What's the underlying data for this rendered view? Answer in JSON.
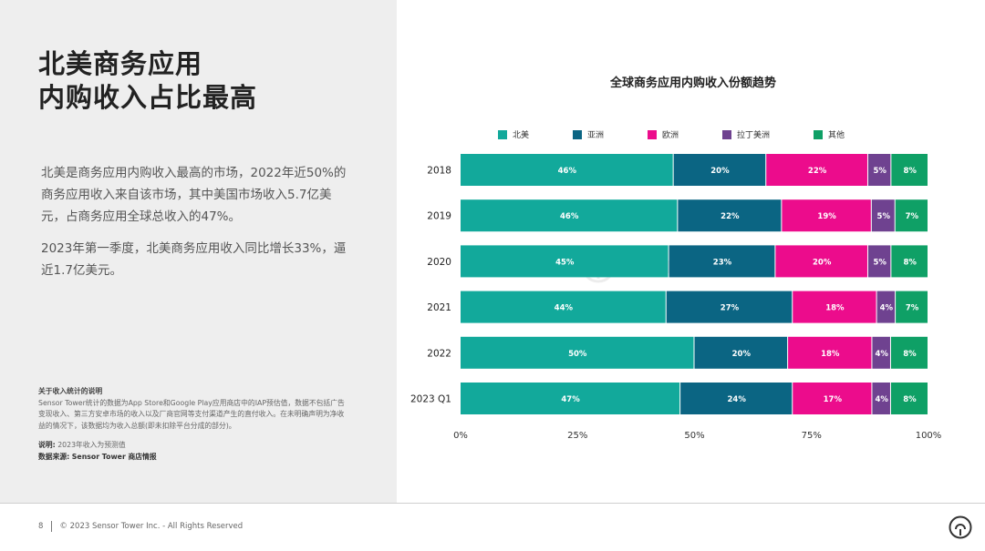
{
  "headline": {
    "line1": "北美商务应用",
    "line2": "内购收入占比最高"
  },
  "body": {
    "p1": "北美是商务应用内购收入最高的市场，2022年近50%的商务应用收入来自该市场，其中美国市场收入5.7亿美元，占商务应用全球总收入的47%。",
    "p2": "2023年第一季度，北美商务应用收入同比增长33%，逼近1.7亿美元。"
  },
  "note": {
    "title": "关于收入统计的说明",
    "text": "Sensor Tower统计的数据为App Store和Google Play应用商店中的IAP预估值，数据不包括广告变现收入、第三方安卓市场的收入以及厂商官网等支付渠道产生的直付收入。在未明确声明为净收益的情况下，该数据均为收入总额(即未扣除平台分成的部分)。",
    "explain_label": "说明:",
    "explain_text": "2023年收入为预测值",
    "source_label": "数据来源:",
    "source_text": "Sensor Tower 商店情报"
  },
  "footer": {
    "page": "8",
    "copyright": "© 2023 Sensor Tower Inc. - All Rights Reserved",
    "brand_icon": "sensor-tower-logo-icon"
  },
  "watermark": {
    "text": "Sensor Tower"
  },
  "chart_data": {
    "type": "bar",
    "orientation": "horizontal",
    "stacked": "percent",
    "title": "全球商务应用内购收入份额趋势",
    "categories": [
      "2018",
      "2019",
      "2020",
      "2021",
      "2022",
      "2023 Q1"
    ],
    "series": [
      {
        "name": "北美",
        "color": "#12a99b",
        "values": [
          46,
          46,
          45,
          44,
          50,
          47
        ]
      },
      {
        "name": "亚洲",
        "color": "#0b6583",
        "values": [
          20,
          22,
          23,
          27,
          20,
          24
        ]
      },
      {
        "name": "欧洲",
        "color": "#ec0c8c",
        "values": [
          22,
          19,
          20,
          18,
          18,
          17
        ]
      },
      {
        "name": "拉丁美洲",
        "color": "#6f4290",
        "values": [
          5,
          5,
          5,
          4,
          4,
          4
        ]
      },
      {
        "name": "其他",
        "color": "#0fa066",
        "values": [
          8,
          7,
          8,
          7,
          8,
          8
        ]
      }
    ],
    "xlim": [
      0,
      100
    ],
    "xticks": [
      "0%",
      "25%",
      "50%",
      "75%",
      "100%"
    ],
    "legend_position": "top",
    "grid": false
  }
}
